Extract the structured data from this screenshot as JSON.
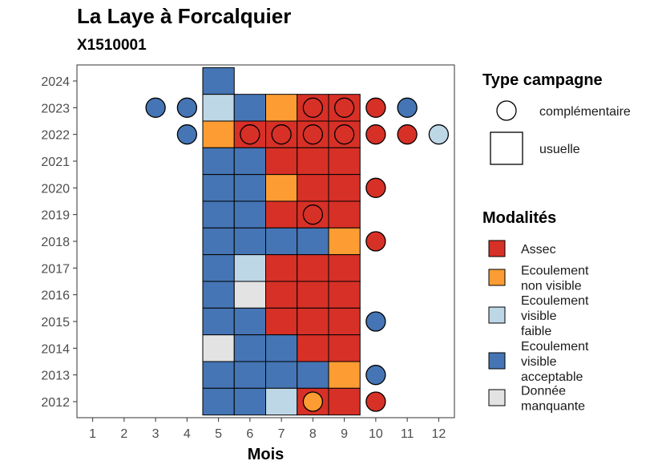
{
  "title": "La Laye à Forcalquier",
  "subtitle": "X1510001",
  "chart_data": {
    "type": "heatmap",
    "xlabel": "Mois",
    "ylabel": "",
    "x_ticks": [
      1,
      2,
      3,
      4,
      5,
      6,
      7,
      8,
      9,
      10,
      11,
      12
    ],
    "y_ticks": [
      2012,
      2013,
      2014,
      2015,
      2016,
      2017,
      2018,
      2019,
      2020,
      2021,
      2022,
      2023,
      2024
    ],
    "colors": {
      "Assec": "#d73027",
      "Ecoulement non visible": "#fd9c32",
      "Ecoulement visible faible": "#bdd7e7",
      "Ecoulement visible acceptable": "#4575b4",
      "Donnée manquante": "#e3e3e3"
    },
    "usuelle": [
      {
        "year": 2024,
        "month": 5,
        "mod": "Ecoulement visible acceptable"
      },
      {
        "year": 2023,
        "month": 5,
        "mod": "Ecoulement visible faible"
      },
      {
        "year": 2023,
        "month": 6,
        "mod": "Ecoulement visible acceptable"
      },
      {
        "year": 2023,
        "month": 7,
        "mod": "Ecoulement non visible"
      },
      {
        "year": 2023,
        "month": 8,
        "mod": "Assec"
      },
      {
        "year": 2023,
        "month": 9,
        "mod": "Assec"
      },
      {
        "year": 2022,
        "month": 5,
        "mod": "Ecoulement non visible"
      },
      {
        "year": 2022,
        "month": 6,
        "mod": "Assec"
      },
      {
        "year": 2022,
        "month": 7,
        "mod": "Assec"
      },
      {
        "year": 2022,
        "month": 8,
        "mod": "Assec"
      },
      {
        "year": 2022,
        "month": 9,
        "mod": "Assec"
      },
      {
        "year": 2021,
        "month": 5,
        "mod": "Ecoulement visible acceptable"
      },
      {
        "year": 2021,
        "month": 6,
        "mod": "Ecoulement visible acceptable"
      },
      {
        "year": 2021,
        "month": 7,
        "mod": "Assec"
      },
      {
        "year": 2021,
        "month": 8,
        "mod": "Assec"
      },
      {
        "year": 2021,
        "month": 9,
        "mod": "Assec"
      },
      {
        "year": 2020,
        "month": 5,
        "mod": "Ecoulement visible acceptable"
      },
      {
        "year": 2020,
        "month": 6,
        "mod": "Ecoulement visible acceptable"
      },
      {
        "year": 2020,
        "month": 7,
        "mod": "Ecoulement non visible"
      },
      {
        "year": 2020,
        "month": 8,
        "mod": "Assec"
      },
      {
        "year": 2020,
        "month": 9,
        "mod": "Assec"
      },
      {
        "year": 2019,
        "month": 5,
        "mod": "Ecoulement visible acceptable"
      },
      {
        "year": 2019,
        "month": 6,
        "mod": "Ecoulement visible acceptable"
      },
      {
        "year": 2019,
        "month": 7,
        "mod": "Assec"
      },
      {
        "year": 2019,
        "month": 8,
        "mod": "Assec"
      },
      {
        "year": 2019,
        "month": 9,
        "mod": "Assec"
      },
      {
        "year": 2018,
        "month": 5,
        "mod": "Ecoulement visible acceptable"
      },
      {
        "year": 2018,
        "month": 6,
        "mod": "Ecoulement visible acceptable"
      },
      {
        "year": 2018,
        "month": 7,
        "mod": "Ecoulement visible acceptable"
      },
      {
        "year": 2018,
        "month": 8,
        "mod": "Ecoulement visible acceptable"
      },
      {
        "year": 2018,
        "month": 9,
        "mod": "Ecoulement non visible"
      },
      {
        "year": 2017,
        "month": 5,
        "mod": "Ecoulement visible acceptable"
      },
      {
        "year": 2017,
        "month": 6,
        "mod": "Ecoulement visible faible"
      },
      {
        "year": 2017,
        "month": 7,
        "mod": "Assec"
      },
      {
        "year": 2017,
        "month": 8,
        "mod": "Assec"
      },
      {
        "year": 2017,
        "month": 9,
        "mod": "Assec"
      },
      {
        "year": 2016,
        "month": 5,
        "mod": "Ecoulement visible acceptable"
      },
      {
        "year": 2016,
        "month": 6,
        "mod": "Donnée manquante"
      },
      {
        "year": 2016,
        "month": 7,
        "mod": "Assec"
      },
      {
        "year": 2016,
        "month": 8,
        "mod": "Assec"
      },
      {
        "year": 2016,
        "month": 9,
        "mod": "Assec"
      },
      {
        "year": 2015,
        "month": 5,
        "mod": "Ecoulement visible acceptable"
      },
      {
        "year": 2015,
        "month": 6,
        "mod": "Ecoulement visible acceptable"
      },
      {
        "year": 2015,
        "month": 7,
        "mod": "Assec"
      },
      {
        "year": 2015,
        "month": 8,
        "mod": "Assec"
      },
      {
        "year": 2015,
        "month": 9,
        "mod": "Assec"
      },
      {
        "year": 2014,
        "month": 5,
        "mod": "Donnée manquante"
      },
      {
        "year": 2014,
        "month": 6,
        "mod": "Ecoulement visible acceptable"
      },
      {
        "year": 2014,
        "month": 7,
        "mod": "Ecoulement visible acceptable"
      },
      {
        "year": 2014,
        "month": 8,
        "mod": "Assec"
      },
      {
        "year": 2014,
        "month": 9,
        "mod": "Assec"
      },
      {
        "year": 2013,
        "month": 5,
        "mod": "Ecoulement visible acceptable"
      },
      {
        "year": 2013,
        "month": 6,
        "mod": "Ecoulement visible acceptable"
      },
      {
        "year": 2013,
        "month": 7,
        "mod": "Ecoulement visible acceptable"
      },
      {
        "year": 2013,
        "month": 8,
        "mod": "Ecoulement visible acceptable"
      },
      {
        "year": 2013,
        "month": 9,
        "mod": "Ecoulement non visible"
      },
      {
        "year": 2012,
        "month": 5,
        "mod": "Ecoulement visible acceptable"
      },
      {
        "year": 2012,
        "month": 6,
        "mod": "Ecoulement visible acceptable"
      },
      {
        "year": 2012,
        "month": 7,
        "mod": "Ecoulement visible faible"
      },
      {
        "year": 2012,
        "month": 8,
        "mod": "Assec"
      },
      {
        "year": 2012,
        "month": 9,
        "mod": "Assec"
      }
    ],
    "complementaire": [
      {
        "year": 2023,
        "month": 3,
        "mod": "Ecoulement visible acceptable"
      },
      {
        "year": 2023,
        "month": 4,
        "mod": "Ecoulement visible acceptable"
      },
      {
        "year": 2023,
        "month": 8,
        "mod": "Assec"
      },
      {
        "year": 2023,
        "month": 9,
        "mod": "Assec"
      },
      {
        "year": 2023,
        "month": 10,
        "mod": "Assec"
      },
      {
        "year": 2023,
        "month": 11,
        "mod": "Ecoulement visible acceptable"
      },
      {
        "year": 2022,
        "month": 4,
        "mod": "Ecoulement visible acceptable"
      },
      {
        "year": 2022,
        "month": 6,
        "mod": "Assec"
      },
      {
        "year": 2022,
        "month": 7,
        "mod": "Assec"
      },
      {
        "year": 2022,
        "month": 8,
        "mod": "Assec"
      },
      {
        "year": 2022,
        "month": 9,
        "mod": "Assec"
      },
      {
        "year": 2022,
        "month": 10,
        "mod": "Assec"
      },
      {
        "year": 2022,
        "month": 11,
        "mod": "Assec"
      },
      {
        "year": 2022,
        "month": 12,
        "mod": "Ecoulement visible faible"
      },
      {
        "year": 2020,
        "month": 10,
        "mod": "Assec"
      },
      {
        "year": 2019,
        "month": 8,
        "mod": "Assec"
      },
      {
        "year": 2018,
        "month": 10,
        "mod": "Assec"
      },
      {
        "year": 2015,
        "month": 10,
        "mod": "Ecoulement visible acceptable"
      },
      {
        "year": 2013,
        "month": 10,
        "mod": "Ecoulement visible acceptable"
      },
      {
        "year": 2012,
        "month": 8,
        "mod": "Ecoulement non visible"
      },
      {
        "year": 2012,
        "month": 10,
        "mod": "Assec"
      }
    ],
    "legend_type": {
      "title": "Type campagne",
      "items": [
        {
          "label": "complémentaire",
          "shape": "circle"
        },
        {
          "label": "usuelle",
          "shape": "square"
        }
      ]
    },
    "legend_mod": {
      "title": "Modalités",
      "items": [
        {
          "key": "Assec",
          "lines": [
            "Assec"
          ]
        },
        {
          "key": "Ecoulement non visible",
          "lines": [
            "Ecoulement",
            "non visible"
          ]
        },
        {
          "key": "Ecoulement visible faible",
          "lines": [
            "Ecoulement",
            "visible",
            "faible"
          ]
        },
        {
          "key": "Ecoulement visible acceptable",
          "lines": [
            "Ecoulement",
            "visible",
            "acceptable"
          ]
        },
        {
          "key": "Donnée manquante",
          "lines": [
            "Donnée",
            "manquante"
          ]
        }
      ]
    }
  }
}
